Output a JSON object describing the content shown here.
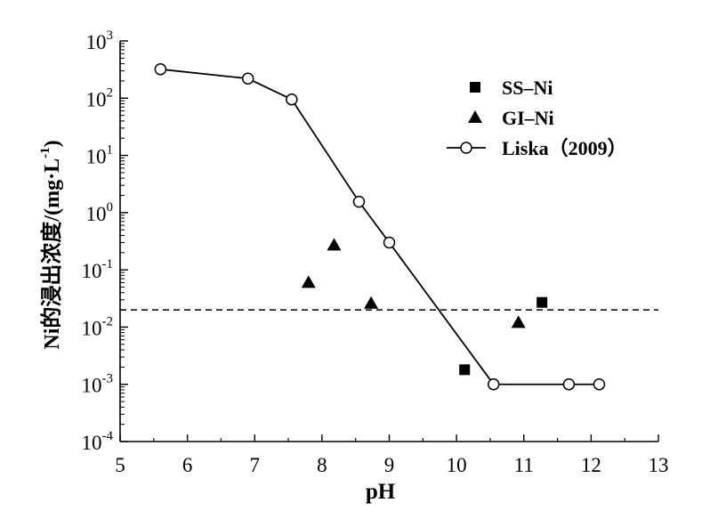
{
  "chart_data": {
    "type": "scatter",
    "title": "",
    "xlabel": "pH",
    "ylabel": "Ni的浸出浓度/(mg·L",
    "ylabel_sup": "-1",
    "ylabel_close": ")",
    "xlim": [
      5,
      13
    ],
    "ylim_log10": [
      -4,
      3
    ],
    "y_scale": "log",
    "x_ticks": [
      "5",
      "6",
      "7",
      "8",
      "9",
      "10",
      "11",
      "12",
      "13"
    ],
    "y_ticks": [
      {
        "base": "10",
        "exp": "3"
      },
      {
        "base": "10",
        "exp": "2"
      },
      {
        "base": "10",
        "exp": "1"
      },
      {
        "base": "10",
        "exp": "0"
      },
      {
        "base": "10",
        "exp": "-1"
      },
      {
        "base": "10",
        "exp": "-2"
      },
      {
        "base": "10",
        "exp": "-3"
      },
      {
        "base": "10",
        "exp": "-4"
      }
    ],
    "legend_position": "top-right",
    "reference_line": {
      "y": 0.02,
      "style": "dashed"
    },
    "series": [
      {
        "name": "SS–Ni",
        "marker": "square",
        "points": [
          {
            "x": 10.12,
            "y": 0.0018
          },
          {
            "x": 11.27,
            "y": 0.027
          }
        ]
      },
      {
        "name": "GI–Ni",
        "marker": "triangle",
        "points": [
          {
            "x": 7.8,
            "y": 0.06
          },
          {
            "x": 8.18,
            "y": 0.27
          },
          {
            "x": 8.73,
            "y": 0.026
          },
          {
            "x": 10.92,
            "y": 0.012
          }
        ]
      },
      {
        "name": "Liska（2009）",
        "marker": "open-circle",
        "line": true,
        "points": [
          {
            "x": 5.6,
            "y": 320
          },
          {
            "x": 6.9,
            "y": 220
          },
          {
            "x": 7.55,
            "y": 95
          },
          {
            "x": 8.55,
            "y": 1.55
          },
          {
            "x": 9.0,
            "y": 0.3
          },
          {
            "x": 10.55,
            "y": 0.001
          },
          {
            "x": 11.67,
            "y": 0.001
          },
          {
            "x": 12.12,
            "y": 0.001
          }
        ]
      }
    ]
  }
}
